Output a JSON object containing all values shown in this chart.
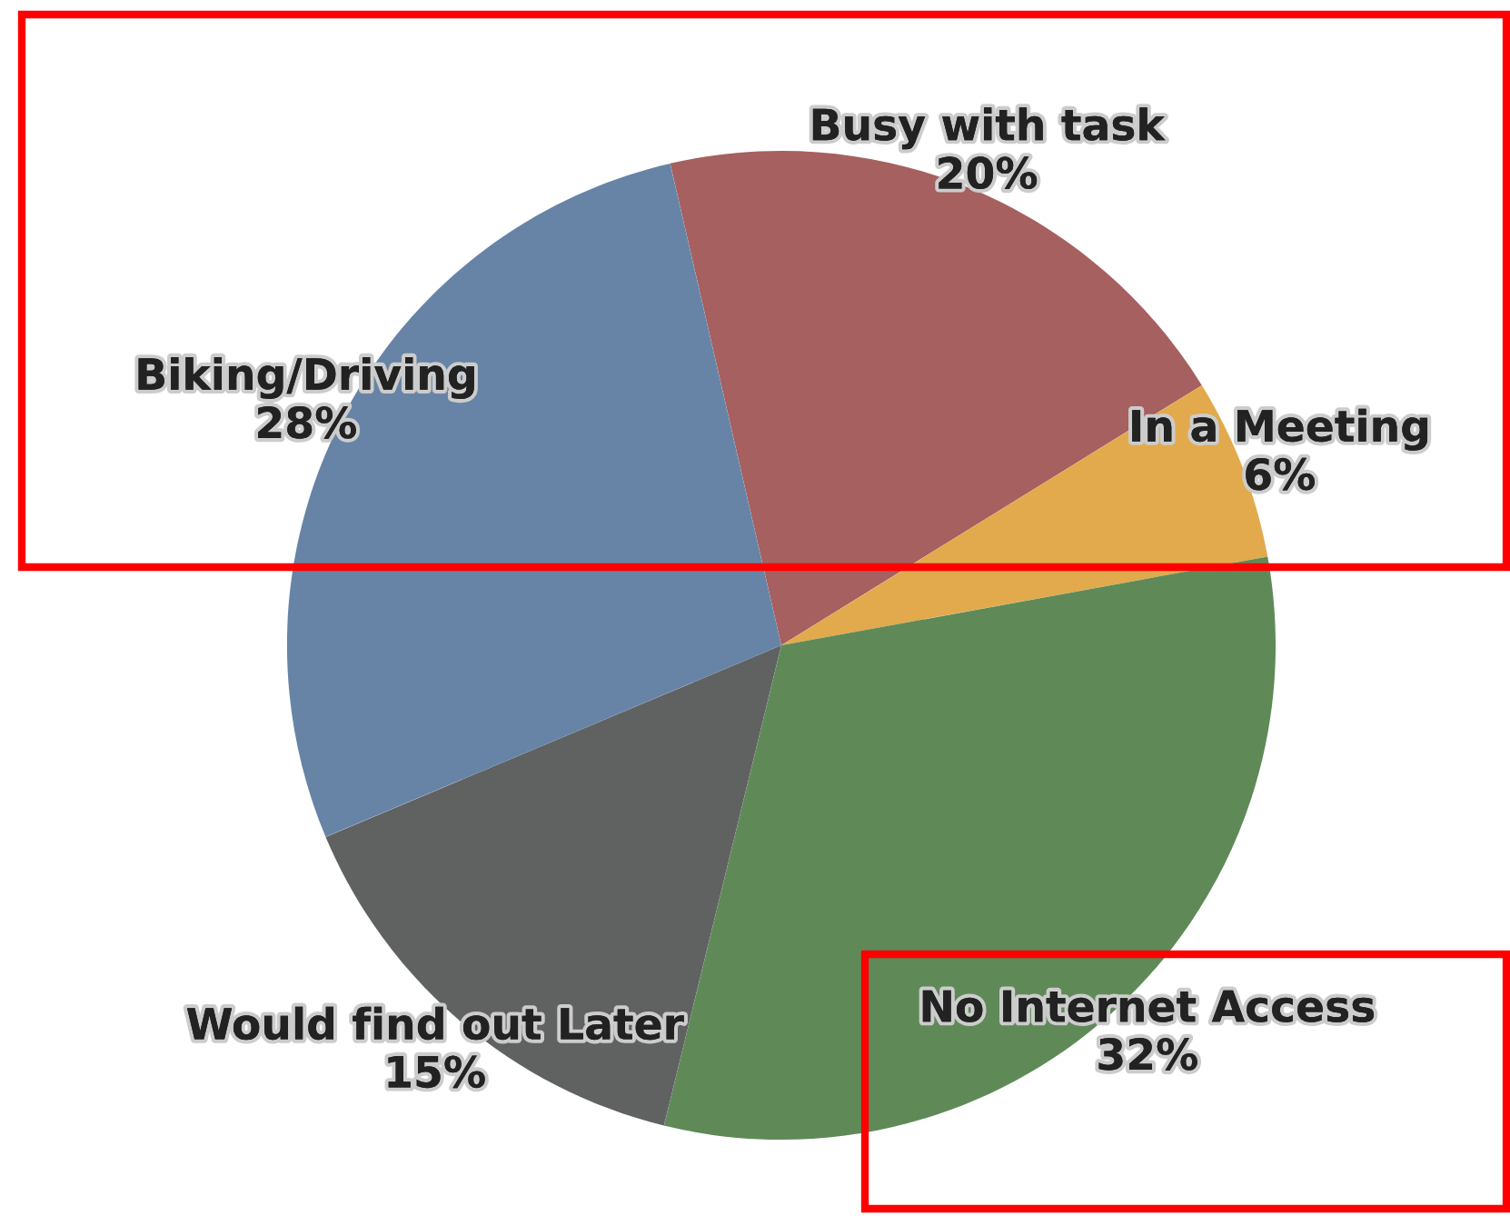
{
  "chart_data": {
    "type": "pie",
    "categories": [
      "Busy with task",
      "In a Meeting",
      "No Internet Access",
      "Would find out Later",
      "Biking/Driving"
    ],
    "values": [
      20,
      6,
      32,
      15,
      28
    ],
    "value_labels": [
      "20%",
      "6%",
      "32%",
      "15%",
      "28%"
    ],
    "colors": [
      "#a5605f",
      "#e2aa4c",
      "#5f8a58",
      "#606262",
      "#6784a6"
    ]
  }
}
